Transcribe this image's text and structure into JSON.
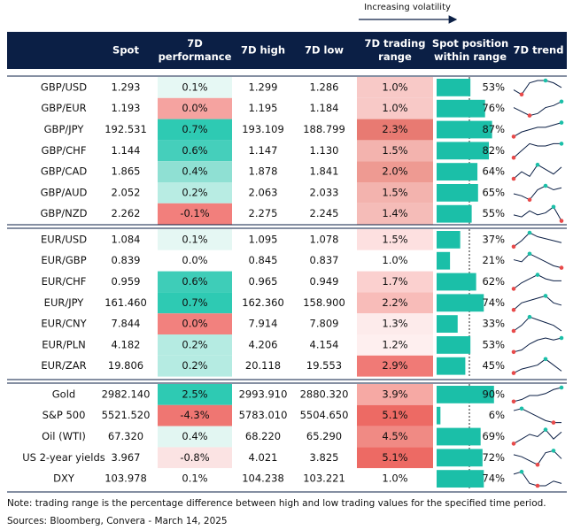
{
  "legend": "Increasing volatility",
  "columns": [
    "Spot",
    "7D performance",
    "7D high",
    "7D low",
    "7D trading range",
    "Spot position within range",
    "7D trend"
  ],
  "groups": [
    {
      "rows": [
        {
          "pair": "GBP/USD",
          "spot": "1.293",
          "perf": "0.1%",
          "perf_color": "#e6f8f4",
          "high": "1.299",
          "low": "1.286",
          "range": "1.0%",
          "range_color": "#f8c9c7",
          "position": {
            "value": 53,
            "label": "53%"
          },
          "trend": [
            5,
            3,
            8,
            9,
            9,
            8,
            6
          ]
        },
        {
          "pair": "GBP/EUR",
          "spot": "1.193",
          "perf": "0.0%",
          "perf_color": "#f5a3a0",
          "high": "1.195",
          "low": "1.184",
          "range": "1.0%",
          "range_color": "#f8c9c7",
          "position": {
            "value": 76,
            "label": "76%"
          },
          "trend": [
            6,
            4,
            2,
            3,
            6,
            7,
            9
          ]
        },
        {
          "pair": "GBP/JPY",
          "spot": "192.531",
          "perf": "0.7%",
          "perf_color": "#2ecab3",
          "high": "193.109",
          "low": "188.799",
          "range": "2.3%",
          "range_color": "#e87a72",
          "position": {
            "value": 87,
            "label": "87%"
          },
          "trend": [
            3,
            5,
            6,
            7,
            7,
            8,
            9
          ]
        },
        {
          "pair": "GBP/CHF",
          "spot": "1.144",
          "perf": "0.6%",
          "perf_color": "#45cfbb",
          "high": "1.147",
          "low": "1.130",
          "range": "1.5%",
          "range_color": "#f3b3ae",
          "position": {
            "value": 82,
            "label": "82%"
          },
          "trend": [
            2,
            5,
            8,
            7,
            7,
            8,
            8
          ]
        },
        {
          "pair": "GBP/CAD",
          "spot": "1.865",
          "perf": "0.4%",
          "perf_color": "#8fe0d3",
          "high": "1.878",
          "low": "1.841",
          "range": "2.0%",
          "range_color": "#ee9a92",
          "position": {
            "value": 64,
            "label": "64%"
          },
          "trend": [
            2,
            5,
            3,
            8,
            6,
            4,
            7
          ]
        },
        {
          "pair": "GBP/AUD",
          "spot": "2.052",
          "perf": "0.2%",
          "perf_color": "#b8ece3",
          "high": "2.063",
          "low": "2.033",
          "range": "1.5%",
          "range_color": "#f3b3ae",
          "position": {
            "value": 65,
            "label": "65%"
          },
          "trend": [
            5,
            4,
            2,
            7,
            9,
            7,
            8
          ]
        },
        {
          "pair": "GBP/NZD",
          "spot": "2.262",
          "perf": "-0.1%",
          "perf_color": "#f27f7c",
          "high": "2.275",
          "low": "2.245",
          "range": "1.4%",
          "range_color": "#f5bcb8",
          "position": {
            "value": 55,
            "label": "55%"
          },
          "trend": [
            5,
            4,
            7,
            5,
            6,
            9,
            2
          ]
        }
      ]
    },
    {
      "rows": [
        {
          "pair": "EUR/USD",
          "spot": "1.084",
          "perf": "0.1%",
          "perf_color": "#e5f7f3",
          "high": "1.095",
          "low": "1.078",
          "range": "1.5%",
          "range_color": "#fde0e0",
          "position": {
            "value": 37,
            "label": "37%"
          },
          "trend": [
            2,
            5,
            9,
            7,
            6,
            5,
            4
          ]
        },
        {
          "pair": "EUR/GBP",
          "spot": "0.839",
          "perf": "0.0%",
          "perf_color": "#ffffff",
          "high": "0.845",
          "low": "0.837",
          "range": "1.0%",
          "range_color": "#ffffff",
          "position": {
            "value": 21,
            "label": "21%"
          },
          "trend": [
            6,
            5,
            9,
            7,
            5,
            3,
            2
          ]
        },
        {
          "pair": "EUR/CHF",
          "spot": "0.959",
          "perf": "0.6%",
          "perf_color": "#3ecdb8",
          "high": "0.965",
          "low": "0.949",
          "range": "1.7%",
          "range_color": "#fbd0cf",
          "position": {
            "value": 62,
            "label": "62%"
          },
          "trend": [
            2,
            5,
            7,
            9,
            7,
            6,
            6
          ]
        },
        {
          "pair": "EUR/JPY",
          "spot": "161.460",
          "perf": "0.7%",
          "perf_color": "#2ecab3",
          "high": "162.360",
          "low": "158.900",
          "range": "2.2%",
          "range_color": "#f8bcb9",
          "position": {
            "value": 74,
            "label": "74%"
          },
          "trend": [
            3,
            6,
            7,
            8,
            9,
            6,
            5
          ]
        },
        {
          "pair": "EUR/CNY",
          "spot": "7.844",
          "perf": "0.0%",
          "perf_color": "#f2817e",
          "high": "7.914",
          "low": "7.809",
          "range": "1.3%",
          "range_color": "#fdebeb",
          "position": {
            "value": 33,
            "label": "33%"
          },
          "trend": [
            4,
            6,
            9,
            8,
            7,
            6,
            4
          ]
        },
        {
          "pair": "EUR/PLN",
          "spot": "4.182",
          "perf": "0.2%",
          "perf_color": "#b5ebe2",
          "high": "4.206",
          "low": "4.154",
          "range": "1.2%",
          "range_color": "#feefef",
          "position": {
            "value": 53,
            "label": "53%"
          },
          "trend": [
            2,
            3,
            6,
            8,
            9,
            8,
            9
          ]
        },
        {
          "pair": "EUR/ZAR",
          "spot": "19.806",
          "perf": "0.2%",
          "perf_color": "#b5ebe2",
          "high": "20.118",
          "low": "19.553",
          "range": "2.9%",
          "range_color": "#f07a76",
          "position": {
            "value": 45,
            "label": "45%"
          },
          "trend": [
            2,
            4,
            5,
            6,
            9,
            6,
            3
          ]
        }
      ]
    },
    {
      "rows": [
        {
          "pair": "Gold",
          "spot": "2982.140",
          "perf": "2.5%",
          "perf_color": "#2ecab3",
          "high": "2993.910",
          "low": "2880.320",
          "range": "3.9%",
          "range_color": "#f6a9a4",
          "position": {
            "value": 90,
            "label": "90%"
          },
          "trend": [
            2,
            3,
            5,
            5,
            6,
            8,
            9
          ]
        },
        {
          "pair": "S&P 500",
          "spot": "5521.520",
          "perf": "-4.3%",
          "perf_color": "#ef7672",
          "high": "5783.010",
          "low": "5504.650",
          "range": "5.1%",
          "range_color": "#ed6a64",
          "position": {
            "value": 6,
            "label": "6%"
          },
          "trend": [
            8,
            9,
            7,
            5,
            3,
            2,
            2
          ]
        },
        {
          "pair": "Oil (WTI)",
          "spot": "67.320",
          "perf": "0.4%",
          "perf_color": "#e2f6f2",
          "high": "68.220",
          "low": "65.290",
          "range": "4.5%",
          "range_color": "#f08a84",
          "position": {
            "value": 69,
            "label": "69%"
          },
          "trend": [
            3,
            5,
            7,
            6,
            9,
            5,
            8
          ]
        },
        {
          "pair": "US 2-year yields",
          "spot": "3.967",
          "perf": "-0.8%",
          "perf_color": "#fbe3e3",
          "high": "4.021",
          "low": "3.825",
          "range": "5.1%",
          "range_color": "#ed6a64",
          "position": {
            "value": 72,
            "label": "72%"
          },
          "trend": [
            7,
            6,
            4,
            2,
            8,
            9,
            5
          ]
        },
        {
          "pair": "DXY",
          "spot": "103.978",
          "perf": "0.1%",
          "perf_color": "#ffffff",
          "high": "104.238",
          "low": "103.221",
          "range": "1.0%",
          "range_color": "#ffffff",
          "position": {
            "value": 74,
            "label": "74%"
          },
          "trend": [
            8,
            9,
            4,
            3,
            3,
            5,
            4
          ]
        }
      ]
    }
  ],
  "note": "Note: trading range is the percentage difference between high and low trading values for the specified time period.",
  "sources": "Sources: Bloomberg, Convera - March 14, 2025"
}
